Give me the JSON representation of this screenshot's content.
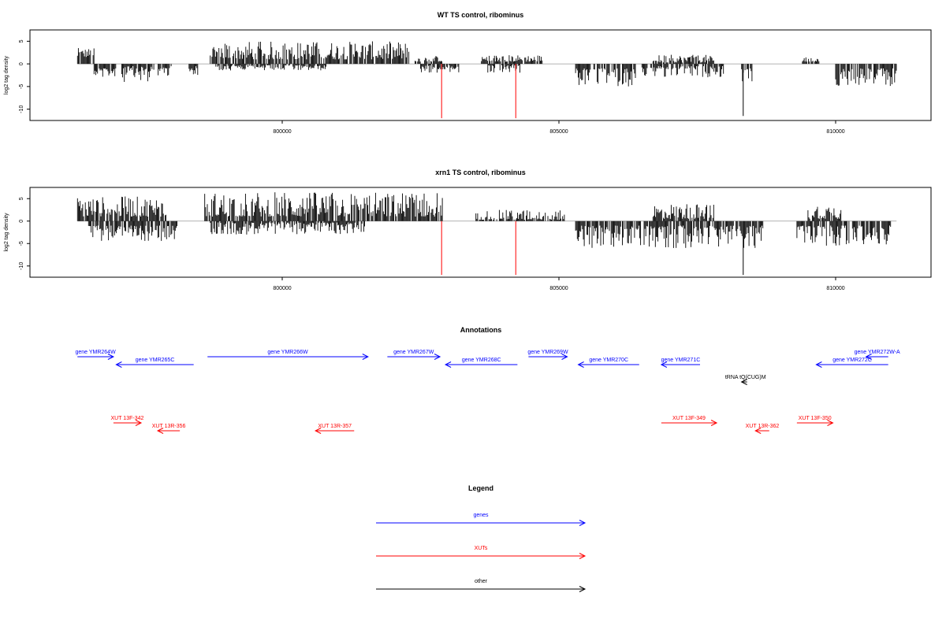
{
  "colors": {
    "gene": "#0000ff",
    "xut": "#ff0000",
    "other": "#000000",
    "highlight": "#ff0000",
    "bars": "#000000"
  },
  "chart_data": [
    {
      "type": "bar",
      "title": "WT TS control, ribominus",
      "ylabel": "log2 tag density",
      "xlim": [
        795700,
        811600
      ],
      "ylim": [
        -12.5,
        7.5
      ],
      "grid": false,
      "x_ticks": [
        800000,
        805000,
        810000
      ],
      "x_tick_labels": [
        "800000",
        "805000",
        "810000"
      ],
      "y_ticks": [
        5,
        0,
        -5,
        -10
      ],
      "y_tick_labels": [
        "5",
        "0",
        "-5",
        "-10"
      ],
      "profile_segments": [
        {
          "x": [
            796300,
            796600
          ],
          "sign": 1,
          "amp": [
            1.5,
            3.5
          ]
        },
        {
          "x": [
            796600,
            797000
          ],
          "sign": -1,
          "amp": [
            1,
            3
          ]
        },
        {
          "x": [
            797100,
            798000
          ],
          "sign": -1,
          "amp": [
            0.5,
            4
          ]
        },
        {
          "x": [
            798300,
            798500
          ],
          "sign": -1,
          "amp": [
            0.5,
            2.5
          ]
        },
        {
          "x": [
            798700,
            802300
          ],
          "sign": 1,
          "amp": [
            1,
            5
          ]
        },
        {
          "x": [
            798800,
            800800
          ],
          "sign": -1,
          "amp": [
            0.3,
            1.5
          ]
        },
        {
          "x": [
            802400,
            802900
          ],
          "sign": 1,
          "amp": [
            0.5,
            1.8
          ]
        },
        {
          "x": [
            802500,
            803200
          ],
          "sign": -1,
          "amp": [
            0.3,
            2
          ]
        },
        {
          "x": [
            803600,
            804700
          ],
          "sign": 1,
          "amp": [
            0.5,
            2
          ]
        },
        {
          "x": [
            803700,
            804300
          ],
          "sign": -1,
          "amp": [
            0.3,
            2
          ]
        },
        {
          "x": [
            805300,
            806400
          ],
          "sign": -1,
          "amp": [
            1,
            5
          ]
        },
        {
          "x": [
            806700,
            807800
          ],
          "sign": 1,
          "amp": [
            0.3,
            2
          ]
        },
        {
          "x": [
            806500,
            808000
          ],
          "sign": -1,
          "amp": [
            0.5,
            3
          ]
        },
        {
          "x": [
            808300,
            808500
          ],
          "sign": -1,
          "amp": [
            1,
            4
          ]
        },
        {
          "x": [
            809400,
            809700
          ],
          "sign": 1,
          "amp": [
            0.5,
            1.5
          ]
        },
        {
          "x": [
            810000,
            811100
          ],
          "sign": -1,
          "amp": [
            1,
            5
          ]
        }
      ],
      "notable_bars": [
        {
          "x": 808330,
          "y": -11.5,
          "color": "bars"
        },
        {
          "x": 802880,
          "y": -12,
          "color": "highlight"
        },
        {
          "x": 804220,
          "y": -12,
          "color": "highlight"
        }
      ]
    },
    {
      "type": "bar",
      "title": "xrn1 TS control, ribominus",
      "ylabel": "log2 tag density",
      "xlim": [
        795700,
        811600
      ],
      "ylim": [
        -12.5,
        7.5
      ],
      "grid": false,
      "x_ticks": [
        800000,
        805000,
        810000
      ],
      "x_tick_labels": [
        "800000",
        "805000",
        "810000"
      ],
      "y_ticks": [
        5,
        0,
        -5,
        -10
      ],
      "y_tick_labels": [
        "5",
        "0",
        "-5",
        "-10"
      ],
      "profile_segments": [
        {
          "x": [
            796300,
            797900
          ],
          "sign": 1,
          "amp": [
            1,
            5.5
          ]
        },
        {
          "x": [
            796500,
            798100
          ],
          "sign": -1,
          "amp": [
            1,
            4.5
          ]
        },
        {
          "x": [
            798600,
            802900
          ],
          "sign": 1,
          "amp": [
            1,
            6.5
          ]
        },
        {
          "x": [
            798700,
            801500
          ],
          "sign": -1,
          "amp": [
            0.3,
            3
          ]
        },
        {
          "x": [
            803500,
            805100
          ],
          "sign": 1,
          "amp": [
            0.3,
            2.5
          ]
        },
        {
          "x": [
            805300,
            808700
          ],
          "sign": -1,
          "amp": [
            1,
            6
          ]
        },
        {
          "x": [
            806700,
            807800
          ],
          "sign": 1,
          "amp": [
            0.5,
            4
          ]
        },
        {
          "x": [
            809500,
            810100
          ],
          "sign": 1,
          "amp": [
            0.5,
            4
          ]
        },
        {
          "x": [
            809300,
            811000
          ],
          "sign": -1,
          "amp": [
            1,
            5.5
          ]
        }
      ],
      "notable_bars": [
        {
          "x": 808330,
          "y": -12,
          "color": "bars"
        },
        {
          "x": 802880,
          "y": -12,
          "color": "highlight"
        },
        {
          "x": 804220,
          "y": -12,
          "color": "highlight"
        }
      ]
    }
  ],
  "annotations": {
    "title": "Annotations",
    "features": [
      {
        "label": "gene YMR264W",
        "kind": "gene",
        "dir": "right",
        "x1": 796300,
        "x2": 796950,
        "row": 0
      },
      {
        "label": "gene YMR265C",
        "kind": "gene",
        "dir": "left",
        "x1": 797000,
        "x2": 798400,
        "row": 1
      },
      {
        "label": "gene YMR266W",
        "kind": "gene",
        "dir": "right",
        "x1": 798650,
        "x2": 801550,
        "row": 0
      },
      {
        "label": "gene YMR267W",
        "kind": "gene",
        "dir": "right",
        "x1": 801900,
        "x2": 802850,
        "row": 0
      },
      {
        "label": "gene YMR268C",
        "kind": "gene",
        "dir": "left",
        "x1": 802950,
        "x2": 804250,
        "row": 1
      },
      {
        "label": "gene YMR269W",
        "kind": "gene",
        "dir": "right",
        "x1": 804450,
        "x2": 805150,
        "row": 0
      },
      {
        "label": "gene YMR270C",
        "kind": "gene",
        "dir": "left",
        "x1": 805350,
        "x2": 806450,
        "row": 1
      },
      {
        "label": "gene YMR271C",
        "kind": "gene",
        "dir": "left",
        "x1": 806850,
        "x2": 807550,
        "row": 1
      },
      {
        "label": "gene YMR272W-A",
        "kind": "gene",
        "dir": "left",
        "x1": 810550,
        "x2": 810950,
        "row": 0
      },
      {
        "label": "gene YMR272C",
        "kind": "gene",
        "dir": "left",
        "x1": 809650,
        "x2": 810950,
        "row": 1
      },
      {
        "label": "tRNA tQ(CUG)M",
        "kind": "other",
        "dir": "left",
        "x1": 808300,
        "x2": 808400,
        "row": 2
      },
      {
        "label": "XUT 13F-342",
        "kind": "xut",
        "dir": "right",
        "x1": 796950,
        "x2": 797450,
        "row": 3
      },
      {
        "label": "XUT 13R-356",
        "kind": "xut",
        "dir": "left",
        "x1": 797750,
        "x2": 798150,
        "row": 4
      },
      {
        "label": "XUT 13R-357",
        "kind": "xut",
        "dir": "left",
        "x1": 800600,
        "x2": 801300,
        "row": 4
      },
      {
        "label": "XUT 13F-349",
        "kind": "xut",
        "dir": "right",
        "x1": 806850,
        "x2": 807850,
        "row": 3
      },
      {
        "label": "XUT 13R-362",
        "kind": "xut",
        "dir": "left",
        "x1": 808550,
        "x2": 808800,
        "row": 4
      },
      {
        "label": "XUT 13F-350",
        "kind": "xut",
        "dir": "right",
        "x1": 809300,
        "x2": 809950,
        "row": 3
      }
    ]
  },
  "legend": {
    "title": "Legend",
    "items": [
      {
        "label": "genes",
        "kind": "gene"
      },
      {
        "label": "XUTs",
        "kind": "xut"
      },
      {
        "label": "other",
        "kind": "other"
      }
    ]
  }
}
